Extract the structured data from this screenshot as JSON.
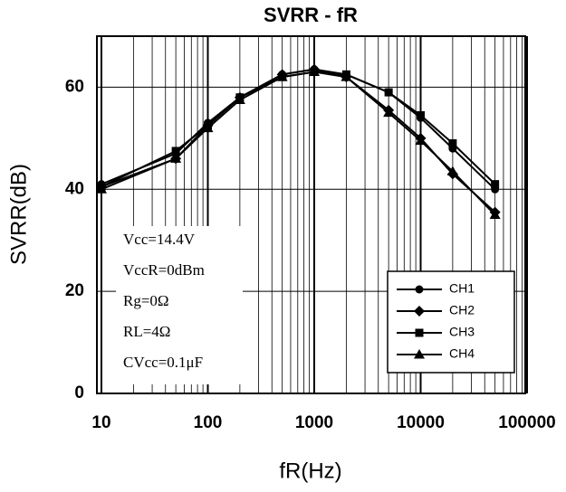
{
  "chart_data": {
    "type": "line",
    "title": "SVRR - fR",
    "x_label": "fR(Hz)",
    "y_label": "SVRR(dB)",
    "x": [
      10,
      50,
      100,
      200,
      500,
      1000,
      2000,
      5000,
      10000,
      20000,
      50000
    ],
    "xlim": [
      10,
      100000
    ],
    "xticks": [
      10,
      100,
      1000,
      10000,
      100000
    ],
    "x_log": true,
    "ylim": [
      0,
      70
    ],
    "yticks": [
      0,
      20,
      40,
      60
    ],
    "grid": true,
    "legend": "lower right",
    "annotations": [
      "Vcc=14.4V",
      "VccR=0dBm",
      "Rg=0Ω",
      "RL=4Ω",
      "CVcc=0.1μF"
    ],
    "series": [
      {
        "name": "CH1",
        "color": "#000000",
        "marker": "circle",
        "values": [
          41,
          47,
          53,
          58,
          62.5,
          63.5,
          62.5,
          59,
          54,
          48,
          40
        ]
      },
      {
        "name": "CH2",
        "color": "#000000",
        "marker": "diamond",
        "values": [
          40.5,
          46,
          52.5,
          58,
          62.5,
          63.5,
          62,
          55.5,
          50,
          43,
          35.5
        ]
      },
      {
        "name": "CH3",
        "color": "#000000",
        "marker": "square",
        "values": [
          40.5,
          47.5,
          52.5,
          58,
          62,
          63,
          62.5,
          59,
          54.5,
          49,
          41
        ]
      },
      {
        "name": "CH4",
        "color": "#000000",
        "marker": "triangle",
        "values": [
          40,
          46,
          52,
          57.5,
          62,
          63,
          62,
          55,
          49.5,
          43.5,
          35
        ]
      }
    ]
  }
}
